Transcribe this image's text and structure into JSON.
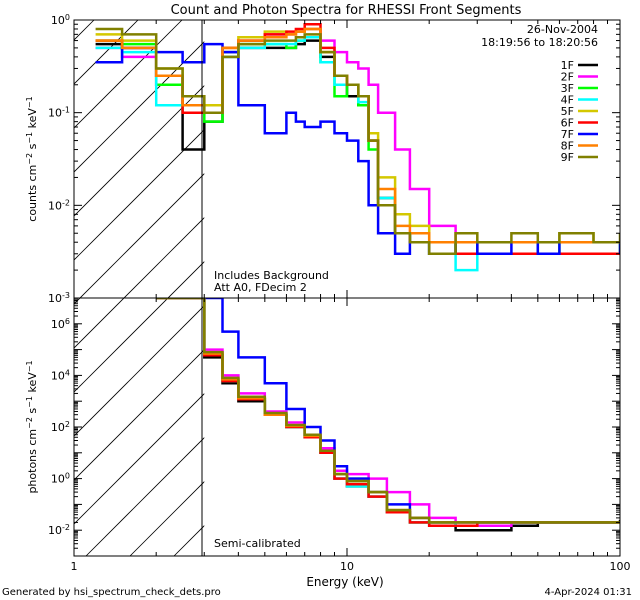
{
  "chart_data": [
    {
      "type": "line",
      "panel": "top",
      "title": "Count and Photon Spectra for RHESSI Front Segments",
      "xlabel": "",
      "ylabel": "counts cm-2 s-1 keV-1",
      "x_scale": "log",
      "y_scale": "log",
      "xlim": [
        1,
        100
      ],
      "ylim": [
        0.001,
        1
      ],
      "date": "26-Nov-2004",
      "time_range": "18:19:56 to 18:20:56",
      "notes": [
        "Includes Background",
        "Att A0, FDecim 2"
      ],
      "x_tick_labels": [
        "1",
        "10",
        "100"
      ],
      "y_ticks": [
        {
          "value": 1,
          "mantissa": "10",
          "exp": "0"
        },
        {
          "value": 0.1,
          "mantissa": "10",
          "exp": "-1"
        },
        {
          "value": 0.01,
          "mantissa": "10",
          "exp": "-2"
        },
        {
          "value": 0.001,
          "mantissa": "10",
          "exp": "-3"
        }
      ],
      "x": [
        1.2,
        1.5,
        2.0,
        2.5,
        3.0,
        3.5,
        4,
        5,
        6,
        6.5,
        7,
        8,
        9,
        10,
        11,
        12,
        13,
        15,
        17,
        20,
        25,
        30,
        40,
        50,
        60,
        80,
        100
      ],
      "series": [
        {
          "name": "1F",
          "color": "#000000",
          "values": [
            0.55,
            0.5,
            0.25,
            0.04,
            0.08,
            0.4,
            0.5,
            0.5,
            0.5,
            0.55,
            0.6,
            0.4,
            0.25,
            0.15,
            0.12,
            0.05,
            0.012,
            0.005,
            0.004,
            0.003,
            0.004,
            0.003,
            0.003,
            0.003,
            0.003,
            0.003,
            0.003
          ]
        },
        {
          "name": "2F",
          "color": "#ff00ff",
          "values": [
            0.5,
            0.4,
            0.2,
            0.12,
            0.12,
            0.45,
            0.6,
            0.7,
            0.7,
            0.75,
            0.8,
            0.6,
            0.45,
            0.35,
            0.3,
            0.2,
            0.1,
            0.04,
            0.015,
            0.006,
            0.004,
            0.003,
            0.003,
            0.003,
            0.003,
            0.003,
            0.003
          ]
        },
        {
          "name": "3F",
          "color": "#00ff00",
          "values": [
            0.6,
            0.55,
            0.2,
            0.1,
            0.08,
            0.45,
            0.55,
            0.55,
            0.5,
            0.6,
            0.65,
            0.35,
            0.15,
            0.2,
            0.12,
            0.04,
            0.01,
            0.005,
            0.004,
            0.003,
            0.004,
            0.003,
            0.003,
            0.004,
            0.003,
            0.003,
            0.004
          ]
        },
        {
          "name": "4F",
          "color": "#00ffff",
          "values": [
            0.5,
            0.45,
            0.12,
            0.1,
            0.1,
            0.4,
            0.5,
            0.55,
            0.55,
            0.6,
            0.65,
            0.35,
            0.2,
            0.2,
            0.13,
            0.05,
            0.012,
            0.005,
            0.004,
            0.003,
            0.002,
            0.003,
            0.003,
            0.003,
            0.003,
            0.003,
            0.003
          ]
        },
        {
          "name": "5F",
          "color": "#d4c800",
          "values": [
            0.7,
            0.6,
            0.3,
            0.15,
            0.12,
            0.5,
            0.65,
            0.75,
            0.7,
            0.75,
            0.8,
            0.45,
            0.25,
            0.2,
            0.15,
            0.06,
            0.02,
            0.008,
            0.006,
            0.004,
            0.005,
            0.004,
            0.004,
            0.004,
            0.005,
            0.004,
            0.004
          ]
        },
        {
          "name": "6F",
          "color": "#ff0000",
          "values": [
            0.6,
            0.5,
            0.25,
            0.1,
            0.1,
            0.5,
            0.6,
            0.7,
            0.75,
            0.8,
            0.9,
            0.5,
            0.25,
            0.2,
            0.15,
            0.05,
            0.01,
            0.005,
            0.004,
            0.003,
            0.003,
            0.003,
            0.003,
            0.003,
            0.003,
            0.003,
            0.003
          ]
        },
        {
          "name": "7F",
          "color": "#0000ff",
          "values": [
            0.35,
            0.5,
            0.45,
            0.35,
            0.55,
            0.45,
            0.12,
            0.06,
            0.1,
            0.08,
            0.07,
            0.08,
            0.06,
            0.05,
            0.03,
            0.01,
            0.005,
            0.003,
            0.004,
            0.003,
            0.004,
            0.003,
            0.004,
            0.003,
            0.004,
            0.004,
            0.003
          ]
        },
        {
          "name": "8F",
          "color": "#ff8000",
          "values": [
            0.6,
            0.5,
            0.25,
            0.12,
            0.1,
            0.5,
            0.6,
            0.65,
            0.7,
            0.75,
            0.8,
            0.45,
            0.25,
            0.2,
            0.15,
            0.05,
            0.015,
            0.006,
            0.005,
            0.004,
            0.004,
            0.004,
            0.004,
            0.004,
            0.004,
            0.004,
            0.004
          ]
        },
        {
          "name": "9F",
          "color": "#808000",
          "values": [
            0.8,
            0.7,
            0.3,
            0.15,
            0.1,
            0.4,
            0.55,
            0.6,
            0.6,
            0.65,
            0.7,
            0.45,
            0.25,
            0.2,
            0.15,
            0.05,
            0.01,
            0.005,
            0.004,
            0.003,
            0.005,
            0.004,
            0.005,
            0.004,
            0.005,
            0.004,
            0.005
          ]
        }
      ]
    },
    {
      "type": "line",
      "panel": "bottom",
      "xlabel": "Energy (keV)",
      "ylabel": "photons cm-2 s-1 keV-1",
      "x_scale": "log",
      "y_scale": "log",
      "xlim": [
        1,
        100
      ],
      "ylim": [
        0.001,
        10000000
      ],
      "notes": [
        "Semi-calibrated"
      ],
      "x_tick_labels": [
        "1",
        "10",
        "100"
      ],
      "y_ticks": [
        {
          "value": 1000000,
          "mantissa": "10",
          "exp": "6"
        },
        {
          "value": 10000,
          "mantissa": "10",
          "exp": "4"
        },
        {
          "value": 100,
          "mantissa": "10",
          "exp": "2"
        },
        {
          "value": 1,
          "mantissa": "10",
          "exp": "0"
        },
        {
          "value": 0.01,
          "mantissa": "10",
          "exp": "-2"
        }
      ],
      "x": [
        2.0,
        2.5,
        3.0,
        3.5,
        4,
        5,
        6,
        7,
        8,
        9,
        10,
        12,
        14,
        17,
        20,
        25,
        30,
        40,
        50,
        60,
        80,
        100
      ],
      "series": [
        {
          "name": "1F",
          "color": "#000000",
          "values": [
            10000000,
            10000000,
            50000,
            5000,
            1000,
            300,
            100,
            40,
            10,
            1,
            0.5,
            0.2,
            0.05,
            0.02,
            0.015,
            0.01,
            0.01,
            0.015,
            0.02,
            0.02,
            0.02,
            0.025
          ]
        },
        {
          "name": "2F",
          "color": "#ff00ff",
          "values": [
            10000000,
            10000000,
            100000,
            10000,
            2000,
            400,
            150,
            50,
            15,
            2,
            1.5,
            1,
            0.3,
            0.1,
            0.03,
            0.02,
            0.015,
            0.02,
            0.02,
            0.02,
            0.02,
            0.02
          ]
        },
        {
          "name": "3F",
          "color": "#00ff00",
          "values": [
            10000000,
            10000000,
            60000,
            6000,
            1200,
            300,
            100,
            40,
            10,
            1.5,
            1,
            0.3,
            0.05,
            0.02,
            0.02,
            0.015,
            0.02,
            0.02,
            0.02,
            0.02,
            0.02,
            0.02
          ]
        },
        {
          "name": "4F",
          "color": "#00ffff",
          "values": [
            10000000,
            10000000,
            60000,
            6000,
            1200,
            300,
            100,
            40,
            10,
            1,
            0.5,
            0.2,
            0.05,
            0.02,
            0.02,
            0.015,
            0.02,
            0.02,
            0.02,
            0.02,
            0.02,
            0.02
          ]
        },
        {
          "name": "5F",
          "color": "#d4c800",
          "values": [
            10000000,
            10000000,
            70000,
            7000,
            1300,
            300,
            110,
            45,
            12,
            1.5,
            0.8,
            0.3,
            0.06,
            0.03,
            0.02,
            0.02,
            0.02,
            0.02,
            0.02,
            0.02,
            0.02,
            0.02
          ]
        },
        {
          "name": "6F",
          "color": "#ff0000",
          "values": [
            10000000,
            10000000,
            60000,
            6000,
            1200,
            300,
            100,
            40,
            10,
            1,
            0.6,
            0.2,
            0.05,
            0.02,
            0.015,
            0.015,
            0.02,
            0.02,
            0.02,
            0.02,
            0.02,
            0.02
          ]
        },
        {
          "name": "7F",
          "color": "#0000ff",
          "values": [
            10000000,
            10000000,
            10000000,
            500000,
            50000,
            5000,
            500,
            100,
            30,
            3,
            1,
            0.3,
            0.1,
            0.03,
            0.02,
            0.02,
            0.02,
            0.02,
            0.02,
            0.02,
            0.02,
            0.02
          ]
        },
        {
          "name": "8F",
          "color": "#ff8000",
          "values": [
            10000000,
            10000000,
            70000,
            7000,
            1300,
            300,
            110,
            45,
            12,
            1.5,
            0.8,
            0.3,
            0.06,
            0.03,
            0.02,
            0.02,
            0.02,
            0.02,
            0.02,
            0.02,
            0.02,
            0.02
          ]
        },
        {
          "name": "9F",
          "color": "#808000",
          "values": [
            10000000,
            10000000,
            80000,
            8000,
            1500,
            350,
            120,
            50,
            12,
            1.5,
            0.8,
            0.3,
            0.06,
            0.03,
            0.02,
            0.02,
            0.02,
            0.02,
            0.02,
            0.02,
            0.02,
            0.02
          ]
        }
      ]
    }
  ],
  "footer": {
    "generated_by": "Generated by hsi_spectrum_check_dets.pro",
    "timestamp": "4-Apr-2024 01:31"
  }
}
